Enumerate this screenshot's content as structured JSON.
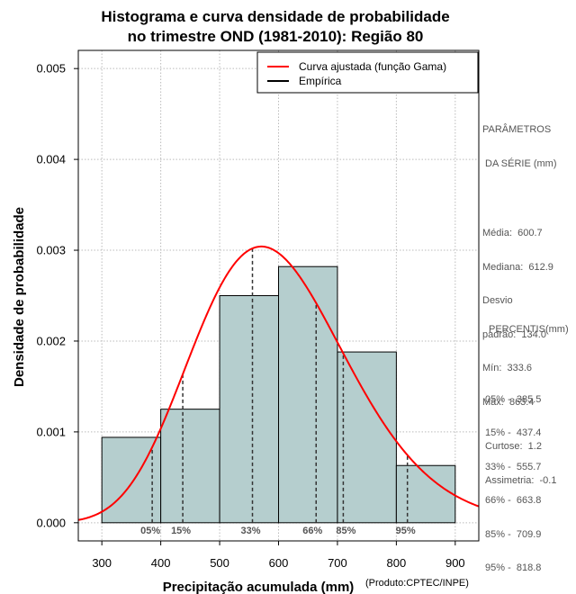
{
  "chart_data": {
    "type": "bar",
    "title_lines": [
      "Histograma e curva densidade de probabilidade",
      "no trimestre OND (1981-2010): Região 80"
    ],
    "xlabel": "Precipitação acumulada (mm)",
    "ylabel": "Densidade de probabilidade",
    "credit": "(Produto:CPTEC/INPE)",
    "xlim": [
      260,
      940
    ],
    "ylim": [
      -0.0002,
      0.0052
    ],
    "xticks": [
      300,
      400,
      500,
      600,
      700,
      800,
      900
    ],
    "yticks": [
      0.0,
      0.001,
      0.002,
      0.003,
      0.004,
      0.005
    ],
    "ytick_labels": [
      "0.000",
      "0.001",
      "0.002",
      "0.003",
      "0.004",
      "0.005"
    ],
    "bins": [
      {
        "from": 300,
        "to": 400,
        "value": 0.00094
      },
      {
        "from": 400,
        "to": 500,
        "value": 0.00125
      },
      {
        "from": 500,
        "to": 600,
        "value": 0.0025
      },
      {
        "from": 600,
        "to": 700,
        "value": 0.00282
      },
      {
        "from": 700,
        "to": 800,
        "value": 0.00188
      },
      {
        "from": 800,
        "to": 900,
        "value": 0.00063
      }
    ],
    "gamma_fit": {
      "mean": 600.7,
      "sd": 134.0
    },
    "percentile_lines": [
      {
        "label": "05%",
        "x": 385.5
      },
      {
        "label": "15%",
        "x": 437.4
      },
      {
        "label": "33%",
        "x": 555.7
      },
      {
        "label": "66%",
        "x": 663.8
      },
      {
        "label": "85%",
        "x": 709.9
      },
      {
        "label": "95%",
        "x": 818.8
      }
    ],
    "legend": [
      {
        "label": "Curva ajustada (função Gama)",
        "color": "#ff0000"
      },
      {
        "label": "Empírica",
        "color": "#000000"
      }
    ],
    "colors": {
      "bar_fill": "#b5cece",
      "curve": "#ff0000",
      "grid": "#bbbbbb"
    }
  },
  "params_panel": {
    "heading": [
      "PARÂMETROS",
      " DA SÉRIE (mm)"
    ],
    "lines": [
      "Média:  600.7",
      "Mediana:  612.9",
      "Desvio",
      "padrão:  134.0",
      "Mín:  333.6",
      "Máx:  863.4"
    ]
  },
  "percentis_panel": {
    "heading": "PERCENTIS(mm)",
    "lines": [
      "05% -  385.5",
      "15% -  437.4",
      "33% -  555.7",
      "66% -  663.8",
      "85% -  709.9",
      "95% -  818.8"
    ]
  },
  "shape_panel": {
    "lines": [
      "Curtose:  1.2",
      "Assimetria:  -0.1"
    ]
  }
}
